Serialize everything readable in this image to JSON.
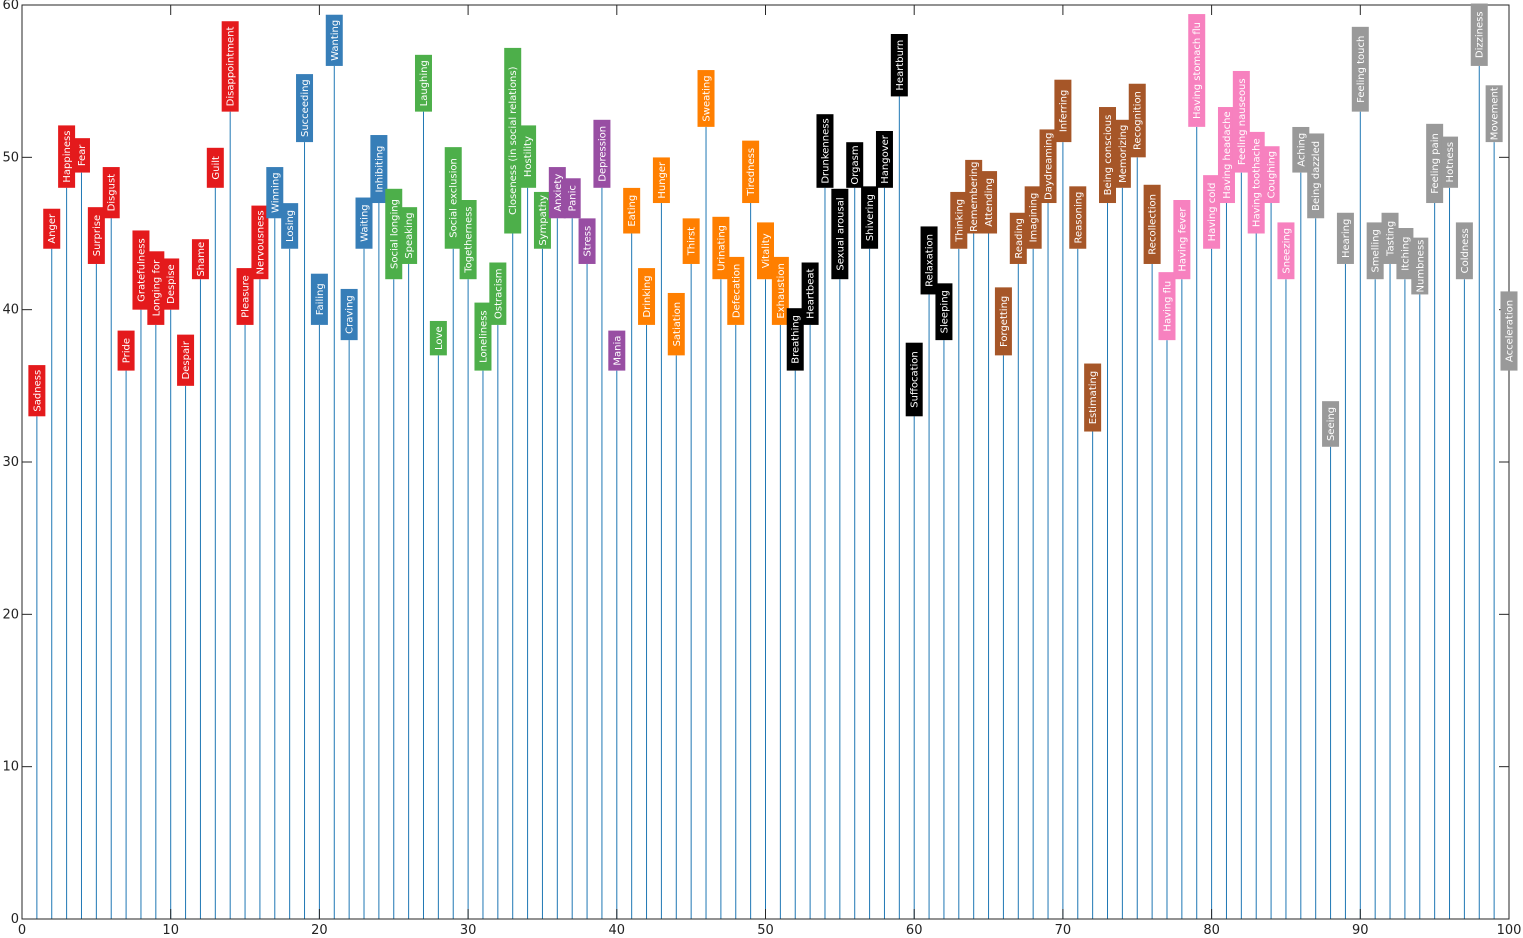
{
  "chart_data": {
    "type": "bar",
    "title": "",
    "xlabel": "",
    "ylabel": "",
    "xlim": [
      0,
      100
    ],
    "ylim": [
      0,
      60
    ],
    "xticks": [
      0,
      10,
      20,
      30,
      40,
      50,
      60,
      70,
      80,
      90,
      100
    ],
    "yticks": [
      0,
      10,
      20,
      30,
      40,
      50,
      60
    ],
    "grid": false,
    "stem_color": "#1f77b4",
    "groups": [
      {
        "id": "emotion",
        "color": "#e41a1c"
      },
      {
        "id": "cognition-goal",
        "color": "#377eb8"
      },
      {
        "id": "social",
        "color": "#4daf4a"
      },
      {
        "id": "mood",
        "color": "#984ea3"
      },
      {
        "id": "homeostasis",
        "color": "#ff7f00"
      },
      {
        "id": "bodily",
        "color": "#000000"
      },
      {
        "id": "cognition",
        "color": "#a65628"
      },
      {
        "id": "illness",
        "color": "#f781bf"
      },
      {
        "id": "sensation",
        "color": "#999999"
      }
    ],
    "points": [
      {
        "x": 1,
        "value": 33,
        "label": "Sadness",
        "group": "emotion"
      },
      {
        "x": 2,
        "value": 44,
        "label": "Anger",
        "group": "emotion"
      },
      {
        "x": 3,
        "value": 48,
        "label": "Happiness",
        "group": "emotion"
      },
      {
        "x": 4,
        "value": 49,
        "label": "Fear",
        "group": "emotion"
      },
      {
        "x": 5,
        "value": 43,
        "label": "Surprise",
        "group": "emotion"
      },
      {
        "x": 6,
        "value": 46,
        "label": "Disgust",
        "group": "emotion"
      },
      {
        "x": 7,
        "value": 36,
        "label": "Pride",
        "group": "emotion"
      },
      {
        "x": 8,
        "value": 40,
        "label": "Gratefulness",
        "group": "emotion"
      },
      {
        "x": 9,
        "value": 39,
        "label": "Longing for",
        "group": "emotion"
      },
      {
        "x": 10,
        "value": 40,
        "label": "Despise",
        "group": "emotion"
      },
      {
        "x": 11,
        "value": 35,
        "label": "Despair",
        "group": "emotion"
      },
      {
        "x": 12,
        "value": 42,
        "label": "Shame",
        "group": "emotion"
      },
      {
        "x": 13,
        "value": 48,
        "label": "Guilt",
        "group": "emotion"
      },
      {
        "x": 14,
        "value": 53,
        "label": "Disappointment",
        "group": "emotion"
      },
      {
        "x": 15,
        "value": 39,
        "label": "Pleasure",
        "group": "emotion"
      },
      {
        "x": 16,
        "value": 42,
        "label": "Nervousness",
        "group": "emotion"
      },
      {
        "x": 17,
        "value": 46,
        "label": "Winning",
        "group": "cognition-goal"
      },
      {
        "x": 18,
        "value": 44,
        "label": "Losing",
        "group": "cognition-goal"
      },
      {
        "x": 19,
        "value": 51,
        "label": "Succeeding",
        "group": "cognition-goal"
      },
      {
        "x": 20,
        "value": 39,
        "label": "Failing",
        "group": "cognition-goal"
      },
      {
        "x": 21,
        "value": 56,
        "label": "Wanting",
        "group": "cognition-goal"
      },
      {
        "x": 22,
        "value": 38,
        "label": "Craving",
        "group": "cognition-goal"
      },
      {
        "x": 23,
        "value": 44,
        "label": "Waiting",
        "group": "cognition-goal"
      },
      {
        "x": 24,
        "value": 47,
        "label": "Inhibiting",
        "group": "cognition-goal"
      },
      {
        "x": 25,
        "value": 42,
        "label": "Social longing",
        "group": "social"
      },
      {
        "x": 26,
        "value": 43,
        "label": "Speaking",
        "group": "social"
      },
      {
        "x": 27,
        "value": 53,
        "label": "Laughing",
        "group": "social"
      },
      {
        "x": 28,
        "value": 37,
        "label": "Love",
        "group": "social"
      },
      {
        "x": 29,
        "value": 44,
        "label": "Social exclusion",
        "group": "social"
      },
      {
        "x": 30,
        "value": 42,
        "label": "Togetherness",
        "group": "social"
      },
      {
        "x": 31,
        "value": 36,
        "label": "Loneliness",
        "group": "social"
      },
      {
        "x": 32,
        "value": 39,
        "label": "Ostracism",
        "group": "social"
      },
      {
        "x": 33,
        "value": 45,
        "label": "Closeness (in social relations)",
        "group": "social"
      },
      {
        "x": 34,
        "value": 48,
        "label": "Hostility",
        "group": "social"
      },
      {
        "x": 35,
        "value": 44,
        "label": "Sympathy",
        "group": "social"
      },
      {
        "x": 36,
        "value": 46,
        "label": "Anxiety",
        "group": "mood"
      },
      {
        "x": 37,
        "value": 46,
        "label": "Panic",
        "group": "mood"
      },
      {
        "x": 38,
        "value": 43,
        "label": "Stress",
        "group": "mood"
      },
      {
        "x": 39,
        "value": 48,
        "label": "Depression",
        "group": "mood"
      },
      {
        "x": 40,
        "value": 36,
        "label": "Mania",
        "group": "mood"
      },
      {
        "x": 41,
        "value": 45,
        "label": "Eating",
        "group": "homeostasis"
      },
      {
        "x": 42,
        "value": 39,
        "label": "Drinking",
        "group": "homeostasis"
      },
      {
        "x": 43,
        "value": 47,
        "label": "Hunger",
        "group": "homeostasis"
      },
      {
        "x": 44,
        "value": 37,
        "label": "Satiation",
        "group": "homeostasis"
      },
      {
        "x": 45,
        "value": 43,
        "label": "Thirst",
        "group": "homeostasis"
      },
      {
        "x": 46,
        "value": 52,
        "label": "Sweating",
        "group": "homeostasis"
      },
      {
        "x": 47,
        "value": 42,
        "label": "Urinating",
        "group": "homeostasis"
      },
      {
        "x": 48,
        "value": 39,
        "label": "Defecation",
        "group": "homeostasis"
      },
      {
        "x": 49,
        "value": 47,
        "label": "Tiredness",
        "group": "homeostasis"
      },
      {
        "x": 50,
        "value": 42,
        "label": "Vitality",
        "group": "homeostasis"
      },
      {
        "x": 51,
        "value": 39,
        "label": "Exhaustion",
        "group": "homeostasis"
      },
      {
        "x": 52,
        "value": 36,
        "label": "Breathing",
        "group": "bodily"
      },
      {
        "x": 53,
        "value": 39,
        "label": "Heartbeat",
        "group": "bodily"
      },
      {
        "x": 54,
        "value": 48,
        "label": "Drunkenness",
        "group": "bodily"
      },
      {
        "x": 55,
        "value": 42,
        "label": "Sexual arousal",
        "group": "bodily"
      },
      {
        "x": 56,
        "value": 48,
        "label": "Orgasm",
        "group": "bodily"
      },
      {
        "x": 57,
        "value": 44,
        "label": "Shivering",
        "group": "bodily"
      },
      {
        "x": 58,
        "value": 48,
        "label": "Hangover",
        "group": "bodily"
      },
      {
        "x": 59,
        "value": 54,
        "label": "Heartburn",
        "group": "bodily"
      },
      {
        "x": 60,
        "value": 33,
        "label": "Suffocation",
        "group": "bodily"
      },
      {
        "x": 61,
        "value": 41,
        "label": "Relaxation",
        "group": "bodily"
      },
      {
        "x": 62,
        "value": 38,
        "label": "Sleeping",
        "group": "bodily"
      },
      {
        "x": 63,
        "value": 44,
        "label": "Thinking",
        "group": "cognition"
      },
      {
        "x": 64,
        "value": 45,
        "label": "Remembering",
        "group": "cognition"
      },
      {
        "x": 65,
        "value": 45,
        "label": "Attending",
        "group": "cognition"
      },
      {
        "x": 66,
        "value": 37,
        "label": "Forgetting",
        "group": "cognition"
      },
      {
        "x": 67,
        "value": 43,
        "label": "Reading",
        "group": "cognition"
      },
      {
        "x": 68,
        "value": 44,
        "label": "Imagining",
        "group": "cognition"
      },
      {
        "x": 69,
        "value": 47,
        "label": "Daydreaming",
        "group": "cognition"
      },
      {
        "x": 70,
        "value": 51,
        "label": "Inferring",
        "group": "cognition"
      },
      {
        "x": 71,
        "value": 44,
        "label": "Reasoning",
        "group": "cognition"
      },
      {
        "x": 72,
        "value": 32,
        "label": "Estimating",
        "group": "cognition"
      },
      {
        "x": 73,
        "value": 47,
        "label": "Being conscious",
        "group": "cognition"
      },
      {
        "x": 74,
        "value": 48,
        "label": "Memorizing",
        "group": "cognition"
      },
      {
        "x": 75,
        "value": 50,
        "label": "Recognition",
        "group": "cognition"
      },
      {
        "x": 76,
        "value": 43,
        "label": "Recollection",
        "group": "cognition"
      },
      {
        "x": 77,
        "value": 38,
        "label": "Having flu",
        "group": "illness"
      },
      {
        "x": 78,
        "value": 42,
        "label": "Having fever",
        "group": "illness"
      },
      {
        "x": 79,
        "value": 52,
        "label": "Having stomach flu",
        "group": "illness"
      },
      {
        "x": 80,
        "value": 44,
        "label": "Having cold",
        "group": "illness"
      },
      {
        "x": 81,
        "value": 47,
        "label": "Having headache",
        "group": "illness"
      },
      {
        "x": 82,
        "value": 49,
        "label": "Feeling nauseous",
        "group": "illness"
      },
      {
        "x": 83,
        "value": 45,
        "label": "Having toothache",
        "group": "illness"
      },
      {
        "x": 84,
        "value": 47,
        "label": "Coughing",
        "group": "illness"
      },
      {
        "x": 85,
        "value": 42,
        "label": "Sneezing",
        "group": "illness"
      },
      {
        "x": 86,
        "value": 49,
        "label": "Aching",
        "group": "sensation"
      },
      {
        "x": 87,
        "value": 46,
        "label": "Being dazzled",
        "group": "sensation"
      },
      {
        "x": 88,
        "value": 31,
        "label": "Seeing",
        "group": "sensation"
      },
      {
        "x": 89,
        "value": 43,
        "label": "Hearing",
        "group": "sensation"
      },
      {
        "x": 90,
        "value": 53,
        "label": "Feeling touch",
        "group": "sensation"
      },
      {
        "x": 91,
        "value": 42,
        "label": "Smelling",
        "group": "sensation"
      },
      {
        "x": 92,
        "value": 43,
        "label": "Tasting",
        "group": "sensation"
      },
      {
        "x": 93,
        "value": 42,
        "label": "Itching",
        "group": "sensation"
      },
      {
        "x": 94,
        "value": 41,
        "label": "Numbness",
        "group": "sensation"
      },
      {
        "x": 95,
        "value": 47,
        "label": "Feeling pain",
        "group": "sensation"
      },
      {
        "x": 96,
        "value": 48,
        "label": "Hotness",
        "group": "sensation"
      },
      {
        "x": 97,
        "value": 42,
        "label": "Coldness",
        "group": "sensation"
      },
      {
        "x": 98,
        "value": 56,
        "label": "Dizziness",
        "group": "sensation"
      },
      {
        "x": 99,
        "value": 51,
        "label": "Movement",
        "group": "sensation"
      },
      {
        "x": 100,
        "value": 36,
        "label": "Acceleration",
        "group": "sensation"
      }
    ]
  }
}
